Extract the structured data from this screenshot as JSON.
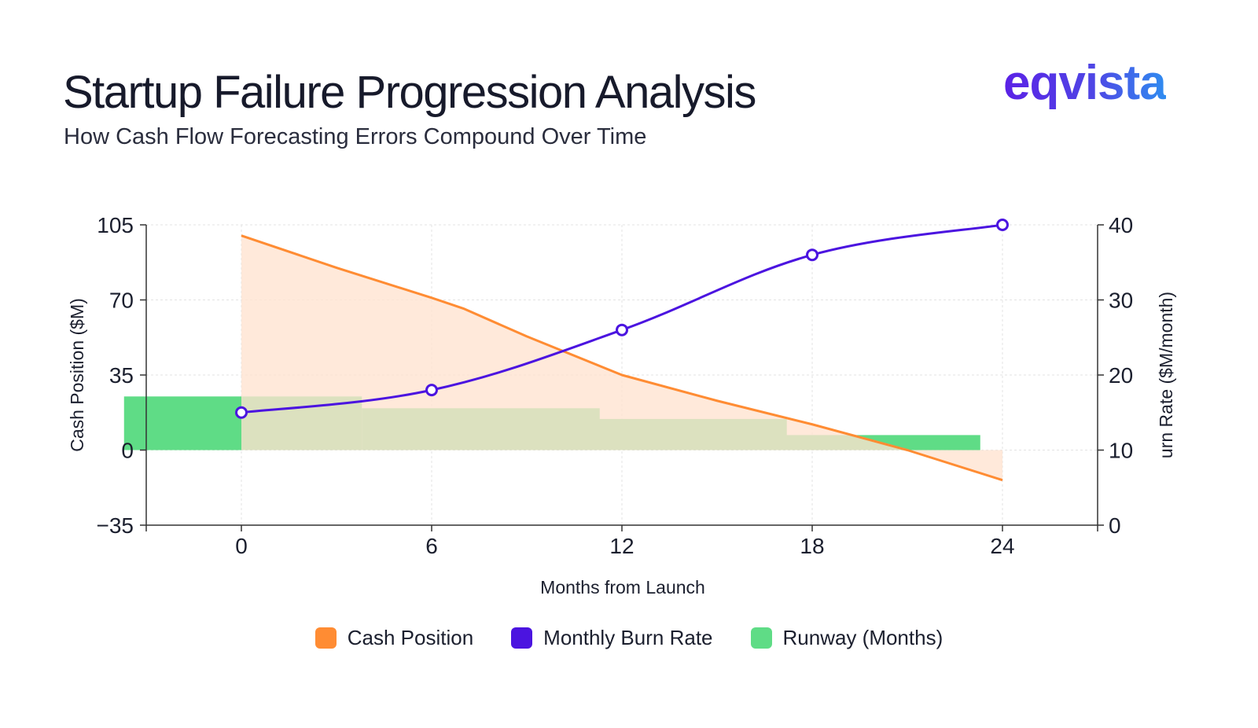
{
  "header": {
    "title": "Startup Failure Progression Analysis",
    "subtitle": "How Cash Flow Forecasting Errors Compound Over Time",
    "logo_text": "eqvista"
  },
  "colors": {
    "cash": "#ff8c33",
    "cash_fill": "#ffe3cf",
    "burn": "#4b14e0",
    "runway": "#5fdc86",
    "runway_overlap": "#b2d692"
  },
  "chart_data": {
    "type": "combo",
    "title": "Startup Failure Progression Analysis",
    "subtitle": "How Cash Flow Forecasting Errors Compound Over Time",
    "xlabel": "Months from Launch",
    "ylabel_left": "Cash Position ($M)",
    "ylabel_right": "urn Rate ($M/month)",
    "x_ticks": [
      0,
      6,
      12,
      18,
      24
    ],
    "x_range": [
      -3,
      27
    ],
    "y_left_ticks": [
      105,
      70,
      35,
      0,
      -35
    ],
    "y_left_range": [
      -35,
      105
    ],
    "y_right_ticks": [
      40,
      30,
      20,
      10,
      0
    ],
    "y_right_range": [
      0,
      40
    ],
    "grid": true,
    "legend_position": "bottom",
    "series": [
      {
        "name": "Cash Position",
        "kind": "area",
        "axis": "left",
        "x": [
          0,
          3,
          6,
          7,
          9,
          12,
          15,
          18,
          21,
          24
        ],
        "values": [
          100,
          85,
          71,
          66,
          53,
          35,
          23,
          12,
          0,
          -14
        ]
      },
      {
        "name": "Monthly Burn Rate",
        "kind": "line",
        "axis": "right",
        "x": [
          0,
          6,
          12,
          18,
          24
        ],
        "values": [
          15,
          18,
          26,
          36,
          40
        ]
      },
      {
        "name": "Runway (Months)",
        "kind": "bar",
        "axis": "left",
        "x": [
          0,
          6,
          12,
          18
        ],
        "values": [
          25,
          19.5,
          14.5,
          7
        ]
      }
    ],
    "legend": [
      "Cash Position",
      "Monthly Burn Rate",
      "Runway (Months)"
    ]
  }
}
